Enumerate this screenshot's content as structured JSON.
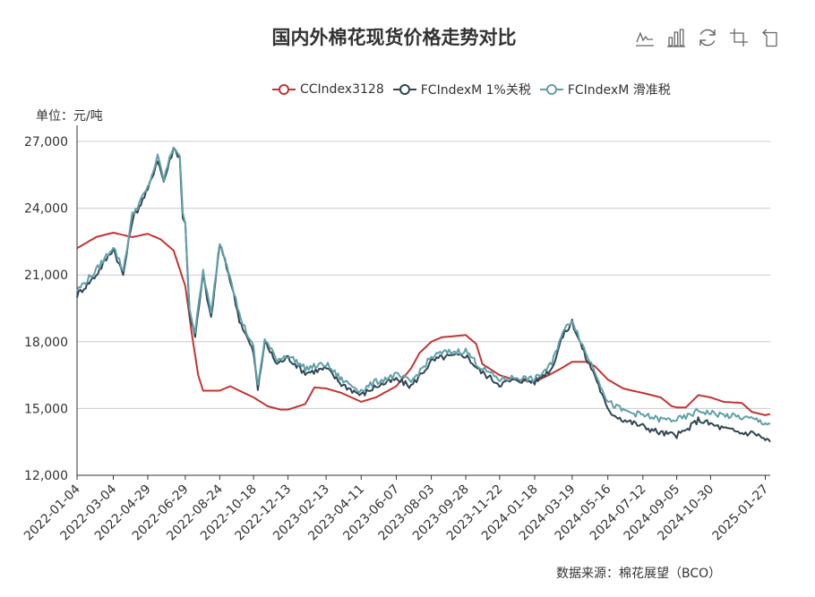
{
  "title": "国内外棉花现货价格走势对比",
  "unit_label": "单位：元/吨",
  "source_label": "数据来源：棉花展望（BCO）",
  "toolbox": [
    {
      "icon": "line-chart-icon"
    },
    {
      "icon": "bar-chart-icon"
    },
    {
      "icon": "refresh-icon"
    },
    {
      "icon": "zoom-icon"
    },
    {
      "icon": "zoom-reset-icon"
    }
  ],
  "colors": {
    "cc": "#c23531",
    "fc1": "#2f4554",
    "fc2": "#61a0a8",
    "axis": "#333333",
    "grid": "#cccccc"
  },
  "chart_data": {
    "type": "line",
    "title": "国内外棉花现货价格走势对比",
    "ylabel": "单位：元/吨",
    "ylim": [
      12000,
      27000
    ],
    "yticks": [
      12000,
      15000,
      18000,
      21000,
      24000,
      27000
    ],
    "ytick_labels": [
      "12,000",
      "15,000",
      "18,000",
      "21,000",
      "24,000",
      "27,000"
    ],
    "xtick_labels": [
      "2022-01-04",
      "2022-03-04",
      "2022-04-29",
      "2022-06-29",
      "2022-08-24",
      "2022-10-18",
      "2022-12-13",
      "2023-02-13",
      "2023-04-11",
      "2023-06-07",
      "2023-08-03",
      "2023-09-28",
      "2023-11-22",
      "2024-01-18",
      "2024-03-19",
      "2024-05-16",
      "2024-07-12",
      "2024-09-05",
      "2024-10-30",
      "2025-01-27"
    ],
    "grid": true,
    "legend_position": "top-right",
    "x_range": [
      "2022-01-04",
      "2025-02-04"
    ],
    "series": [
      {
        "name": "CCIndex3128",
        "color": "#c23531",
        "points": [
          [
            "2022-01-04",
            22200
          ],
          [
            "2022-02-04",
            22700
          ],
          [
            "2022-03-04",
            22900
          ],
          [
            "2022-04-04",
            22700
          ],
          [
            "2022-04-29",
            22850
          ],
          [
            "2022-05-20",
            22600
          ],
          [
            "2022-06-10",
            22100
          ],
          [
            "2022-06-29",
            20500
          ],
          [
            "2022-07-10",
            18300
          ],
          [
            "2022-07-20",
            16500
          ],
          [
            "2022-07-28",
            15800
          ],
          [
            "2022-08-24",
            15800
          ],
          [
            "2022-09-10",
            16000
          ],
          [
            "2022-09-25",
            15800
          ],
          [
            "2022-10-18",
            15500
          ],
          [
            "2022-11-10",
            15100
          ],
          [
            "2022-12-01",
            14950
          ],
          [
            "2022-12-13",
            14950
          ],
          [
            "2023-01-10",
            15200
          ],
          [
            "2023-01-25",
            15950
          ],
          [
            "2023-02-13",
            15900
          ],
          [
            "2023-03-10",
            15700
          ],
          [
            "2023-04-11",
            15300
          ],
          [
            "2023-05-05",
            15500
          ],
          [
            "2023-06-07",
            16000
          ],
          [
            "2023-07-01",
            16800
          ],
          [
            "2023-07-15",
            17500
          ],
          [
            "2023-08-03",
            18000
          ],
          [
            "2023-08-20",
            18200
          ],
          [
            "2023-09-28",
            18300
          ],
          [
            "2023-10-15",
            17900
          ],
          [
            "2023-10-25",
            17000
          ],
          [
            "2023-11-22",
            16500
          ],
          [
            "2023-12-15",
            16300
          ],
          [
            "2024-01-18",
            16200
          ],
          [
            "2024-02-10",
            16500
          ],
          [
            "2024-03-01",
            16800
          ],
          [
            "2024-03-19",
            17100
          ],
          [
            "2024-04-10",
            17100
          ],
          [
            "2024-04-25",
            16900
          ],
          [
            "2024-05-16",
            16300
          ],
          [
            "2024-06-10",
            15900
          ],
          [
            "2024-06-25",
            15800
          ],
          [
            "2024-07-12",
            15700
          ],
          [
            "2024-08-10",
            15500
          ],
          [
            "2024-08-28",
            15100
          ],
          [
            "2024-09-05",
            15050
          ],
          [
            "2024-09-20",
            15050
          ],
          [
            "2024-10-10",
            15600
          ],
          [
            "2024-10-30",
            15500
          ],
          [
            "2024-11-20",
            15300
          ],
          [
            "2024-12-20",
            15250
          ],
          [
            "2025-01-05",
            14850
          ],
          [
            "2025-01-27",
            14700
          ],
          [
            "2025-02-04",
            14750
          ]
        ]
      },
      {
        "name": "FCIndexM 1%关税",
        "color": "#2f4554",
        "points": [
          [
            "2022-01-04",
            20100
          ],
          [
            "2022-02-04",
            21000
          ],
          [
            "2022-03-04",
            22200
          ],
          [
            "2022-03-20",
            21000
          ],
          [
            "2022-04-04",
            23500
          ],
          [
            "2022-04-29",
            24800
          ],
          [
            "2022-05-15",
            26200
          ],
          [
            "2022-05-25",
            25200
          ],
          [
            "2022-06-10",
            26700
          ],
          [
            "2022-06-20",
            26300
          ],
          [
            "2022-06-25",
            23500
          ],
          [
            "2022-06-29",
            23300
          ],
          [
            "2022-07-06",
            19300
          ],
          [
            "2022-07-15",
            18200
          ],
          [
            "2022-07-28",
            21000
          ],
          [
            "2022-08-10",
            19000
          ],
          [
            "2022-08-24",
            22400
          ],
          [
            "2022-09-10",
            20800
          ],
          [
            "2022-09-25",
            19000
          ],
          [
            "2022-10-18",
            17500
          ],
          [
            "2022-10-25",
            15800
          ],
          [
            "2022-11-05",
            18000
          ],
          [
            "2022-11-25",
            17000
          ],
          [
            "2022-12-13",
            17300
          ],
          [
            "2023-01-10",
            16600
          ],
          [
            "2023-02-13",
            16800
          ],
          [
            "2023-03-10",
            16100
          ],
          [
            "2023-04-11",
            15600
          ],
          [
            "2023-05-05",
            16000
          ],
          [
            "2023-06-07",
            16300
          ],
          [
            "2023-07-01",
            16000
          ],
          [
            "2023-08-03",
            17100
          ],
          [
            "2023-08-20",
            17300
          ],
          [
            "2023-09-28",
            17400
          ],
          [
            "2023-10-20",
            16700
          ],
          [
            "2023-11-22",
            16100
          ],
          [
            "2023-12-20",
            16300
          ],
          [
            "2024-01-18",
            16200
          ],
          [
            "2024-02-15",
            16800
          ],
          [
            "2024-03-01",
            18100
          ],
          [
            "2024-03-19",
            18900
          ],
          [
            "2024-04-10",
            17300
          ],
          [
            "2024-04-25",
            16500
          ],
          [
            "2024-05-16",
            14900
          ],
          [
            "2024-06-10",
            14500
          ],
          [
            "2024-07-12",
            14200
          ],
          [
            "2024-08-10",
            13900
          ],
          [
            "2024-09-05",
            13800
          ],
          [
            "2024-09-20",
            14000
          ],
          [
            "2024-10-10",
            14500
          ],
          [
            "2024-10-30",
            14300
          ],
          [
            "2024-11-20",
            14100
          ],
          [
            "2024-12-20",
            13900
          ],
          [
            "2025-01-10",
            13900
          ],
          [
            "2025-01-27",
            13600
          ],
          [
            "2025-02-04",
            13500
          ]
        ]
      },
      {
        "name": "FCIndexM 滑准税",
        "color": "#61a0a8",
        "points": [
          [
            "2022-01-04",
            20300
          ],
          [
            "2022-02-04",
            21200
          ],
          [
            "2022-03-04",
            22300
          ],
          [
            "2022-03-20",
            21200
          ],
          [
            "2022-04-04",
            23700
          ],
          [
            "2022-04-29",
            24900
          ],
          [
            "2022-05-15",
            26300
          ],
          [
            "2022-05-25",
            25300
          ],
          [
            "2022-06-10",
            26800
          ],
          [
            "2022-06-20",
            26400
          ],
          [
            "2022-06-25",
            23700
          ],
          [
            "2022-06-29",
            23400
          ],
          [
            "2022-07-06",
            19500
          ],
          [
            "2022-07-15",
            18400
          ],
          [
            "2022-07-28",
            21200
          ],
          [
            "2022-08-10",
            19200
          ],
          [
            "2022-08-24",
            22500
          ],
          [
            "2022-09-10",
            21000
          ],
          [
            "2022-09-25",
            19200
          ],
          [
            "2022-10-18",
            17700
          ],
          [
            "2022-10-25",
            16000
          ],
          [
            "2022-11-05",
            18100
          ],
          [
            "2022-11-25",
            17200
          ],
          [
            "2022-12-13",
            17400
          ],
          [
            "2023-01-10",
            16800
          ],
          [
            "2023-02-13",
            17000
          ],
          [
            "2023-03-10",
            16300
          ],
          [
            "2023-04-11",
            15800
          ],
          [
            "2023-05-05",
            16200
          ],
          [
            "2023-06-07",
            16500
          ],
          [
            "2023-07-01",
            16200
          ],
          [
            "2023-08-03",
            17300
          ],
          [
            "2023-08-20",
            17500
          ],
          [
            "2023-09-28",
            17600
          ],
          [
            "2023-10-20",
            16900
          ],
          [
            "2023-11-22",
            16300
          ],
          [
            "2023-12-20",
            16400
          ],
          [
            "2024-01-18",
            16300
          ],
          [
            "2024-02-15",
            17000
          ],
          [
            "2024-03-01",
            18300
          ],
          [
            "2024-03-19",
            19000
          ],
          [
            "2024-04-10",
            17500
          ],
          [
            "2024-04-25",
            16700
          ],
          [
            "2024-05-16",
            15300
          ],
          [
            "2024-06-10",
            14900
          ],
          [
            "2024-07-12",
            14700
          ],
          [
            "2024-08-10",
            14500
          ],
          [
            "2024-09-05",
            14500
          ],
          [
            "2024-09-20",
            14600
          ],
          [
            "2024-10-10",
            14900
          ],
          [
            "2024-10-30",
            14800
          ],
          [
            "2024-11-20",
            14700
          ],
          [
            "2024-12-20",
            14600
          ],
          [
            "2025-01-10",
            14500
          ],
          [
            "2025-01-27",
            14350
          ],
          [
            "2025-02-04",
            14300
          ]
        ]
      }
    ]
  }
}
